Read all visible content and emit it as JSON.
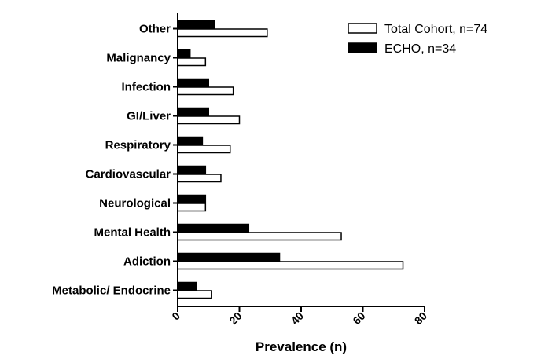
{
  "chart_data": {
    "type": "bar",
    "orientation": "horizontal",
    "categories": [
      "Other",
      "Malignancy",
      "Infection",
      "GI/Liver",
      "Respiratory",
      "Cardiovascular",
      "Neurological",
      "Mental Health",
      "Adiction",
      "Metabolic/ Endocrine"
    ],
    "series": [
      {
        "name": "ECHO, n=34",
        "color": "#000000",
        "values": [
          12,
          4,
          10,
          10,
          8,
          9,
          9,
          23,
          33,
          6
        ]
      },
      {
        "name": "Total Cohort, n=74",
        "color": "#ffffff",
        "values": [
          29,
          9,
          18,
          20,
          17,
          14,
          9,
          53,
          73,
          11
        ]
      }
    ],
    "xlabel": "Prevalence (n)",
    "ylabel": "",
    "title": "",
    "xlim": [
      0,
      80
    ],
    "xticks": [
      "0",
      "20",
      "40",
      "60",
      "80"
    ],
    "grid": false,
    "legend_position": "top-right"
  }
}
